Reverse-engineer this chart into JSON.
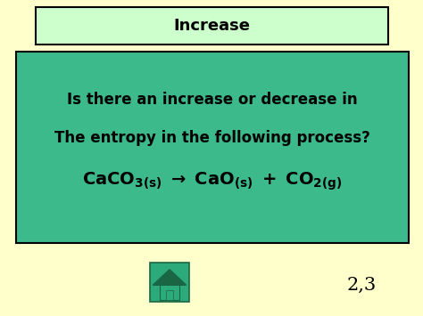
{
  "bg_color": "#ffffcc",
  "title_box_color": "#ccffcc",
  "title_box_edge": "#000000",
  "title_text": "Increase",
  "title_fontsize": 13,
  "main_box_color": "#3dba8c",
  "main_box_edge": "#000000",
  "line1": "Is there an increase or decrease in",
  "line2": "The entropy in the following process?",
  "text_color": "#000000",
  "main_fontsize": 12,
  "chem_fontsize": 14,
  "slide_num": "2,3",
  "slide_num_fontsize": 15,
  "home_icon_color": "#2daa7a",
  "home_icon_edge": "#1a6644"
}
